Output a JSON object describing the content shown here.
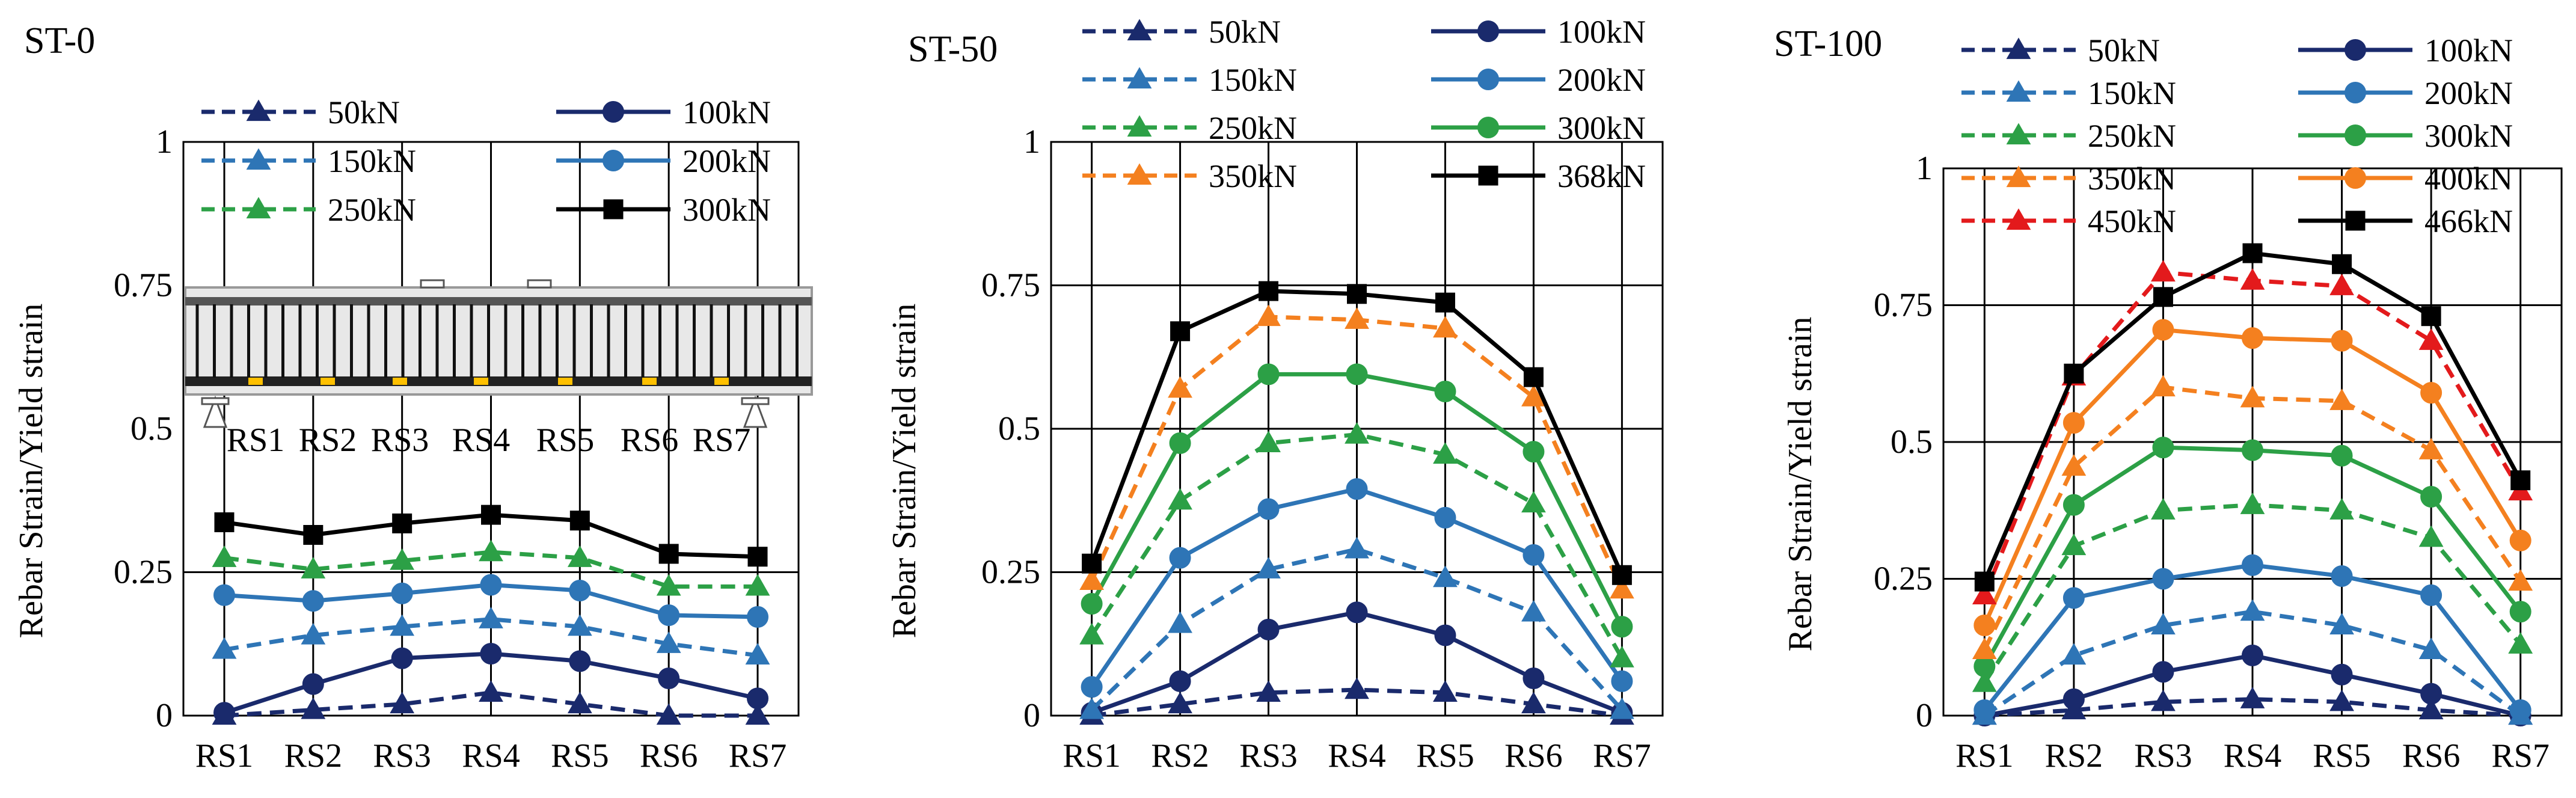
{
  "figure": {
    "panel_titles": [
      "ST-0",
      "ST-50",
      "ST-100"
    ],
    "specimen_inset": {
      "description_labels": [
        "RS1",
        "RS2",
        "RS3",
        "RS4",
        "RS5",
        "RS6",
        "RS7"
      ]
    }
  },
  "chart_data": [
    {
      "type": "line",
      "title": "ST-0",
      "xlabel": "",
      "ylabel": "Rebar Strain/Yield strain",
      "ylim": [
        0,
        1
      ],
      "yticks": [
        "0",
        "0.25",
        "0.5",
        "0.75",
        "1"
      ],
      "grid": "horizontal at 0.25 only, vertical at each category",
      "categories": [
        "RS1",
        "RS2",
        "RS3",
        "RS4",
        "RS5",
        "RS6",
        "RS7"
      ],
      "series": [
        {
          "name": "50kN",
          "color": "#1a2a6c",
          "dash": true,
          "marker": "triangle",
          "values": [
            0.0,
            0.01,
            0.02,
            0.04,
            0.02,
            0.0,
            0.0
          ]
        },
        {
          "name": "100kN",
          "color": "#1a2a6c",
          "dash": false,
          "marker": "circle",
          "values": [
            0.005,
            0.055,
            0.1,
            0.108,
            0.095,
            0.065,
            0.03
          ]
        },
        {
          "name": "150kN",
          "color": "#2e75b6",
          "dash": true,
          "marker": "triangle",
          "values": [
            0.115,
            0.14,
            0.155,
            0.168,
            0.155,
            0.125,
            0.105
          ]
        },
        {
          "name": "200kN",
          "color": "#2e75b6",
          "dash": false,
          "marker": "circle",
          "values": [
            0.21,
            0.2,
            0.213,
            0.228,
            0.218,
            0.175,
            0.172
          ]
        },
        {
          "name": "250kN",
          "color": "#2ca046",
          "dash": true,
          "marker": "triangle",
          "values": [
            0.275,
            0.255,
            0.27,
            0.285,
            0.275,
            0.225,
            0.225
          ]
        },
        {
          "name": "300kN",
          "color": "#000000",
          "dash": false,
          "marker": "square",
          "values": [
            0.337,
            0.315,
            0.335,
            0.35,
            0.34,
            0.282,
            0.277
          ]
        }
      ]
    },
    {
      "type": "line",
      "title": "ST-50",
      "xlabel": "",
      "ylabel": "Rebar Strain/Yield strain",
      "ylim": [
        0,
        1
      ],
      "yticks": [
        "0",
        "0.25",
        "0.5",
        "0.75",
        "1"
      ],
      "grid": "horizontal at 0.25/0.5/0.75, vertical at each category",
      "categories": [
        "RS1",
        "RS2",
        "RS3",
        "RS4",
        "RS5",
        "RS6",
        "RS7"
      ],
      "series": [
        {
          "name": "50kN",
          "color": "#1a2a6c",
          "dash": true,
          "marker": "triangle",
          "values": [
            0.0,
            0.02,
            0.04,
            0.045,
            0.04,
            0.02,
            0.0
          ]
        },
        {
          "name": "100kN",
          "color": "#1a2a6c",
          "dash": false,
          "marker": "circle",
          "values": [
            0.005,
            0.06,
            0.15,
            0.18,
            0.14,
            0.065,
            0.005
          ]
        },
        {
          "name": "150kN",
          "color": "#2e75b6",
          "dash": true,
          "marker": "triangle",
          "values": [
            0.01,
            0.16,
            0.255,
            0.29,
            0.24,
            0.18,
            0.01
          ]
        },
        {
          "name": "200kN",
          "color": "#2e75b6",
          "dash": false,
          "marker": "circle",
          "values": [
            0.05,
            0.275,
            0.36,
            0.395,
            0.345,
            0.28,
            0.06
          ]
        },
        {
          "name": "250kN",
          "color": "#2ca046",
          "dash": true,
          "marker": "triangle",
          "values": [
            0.14,
            0.375,
            0.475,
            0.49,
            0.455,
            0.37,
            0.1
          ]
        },
        {
          "name": "300kN",
          "color": "#2ca046",
          "dash": false,
          "marker": "circle",
          "values": [
            0.195,
            0.475,
            0.595,
            0.595,
            0.565,
            0.46,
            0.155
          ]
        },
        {
          "name": "350kN",
          "color": "#f4801f",
          "dash": true,
          "marker": "triangle",
          "values": [
            0.235,
            0.57,
            0.695,
            0.69,
            0.675,
            0.555,
            0.22
          ]
        },
        {
          "name": "368kN",
          "color": "#000000",
          "dash": false,
          "marker": "square",
          "values": [
            0.265,
            0.67,
            0.74,
            0.735,
            0.72,
            0.59,
            0.245
          ]
        }
      ]
    },
    {
      "type": "line",
      "title": "ST-100",
      "xlabel": "",
      "ylabel": "Rebar Strain/Yield strain",
      "ylim": [
        0,
        1
      ],
      "yticks": [
        "0",
        "0.25",
        "0.5",
        "0.75",
        "1"
      ],
      "grid": "horizontal at 0.25/0.5/0.75, vertical at each category",
      "categories": [
        "RS1",
        "RS2",
        "RS3",
        "RS4",
        "RS5",
        "RS6",
        "RS7"
      ],
      "series": [
        {
          "name": "50kN",
          "color": "#1a2a6c",
          "dash": true,
          "marker": "triangle",
          "values": [
            0.0,
            0.01,
            0.025,
            0.03,
            0.025,
            0.01,
            0.0
          ]
        },
        {
          "name": "100kN",
          "color": "#1a2a6c",
          "dash": false,
          "marker": "circle",
          "values": [
            0.0,
            0.03,
            0.08,
            0.11,
            0.075,
            0.04,
            0.0
          ]
        },
        {
          "name": "150kN",
          "color": "#2e75b6",
          "dash": true,
          "marker": "triangle",
          "values": [
            0.0,
            0.11,
            0.165,
            0.19,
            0.165,
            0.12,
            0.0
          ]
        },
        {
          "name": "200kN",
          "color": "#2e75b6",
          "dash": false,
          "marker": "circle",
          "values": [
            0.01,
            0.215,
            0.25,
            0.275,
            0.255,
            0.22,
            0.01
          ]
        },
        {
          "name": "250kN",
          "color": "#2ca046",
          "dash": true,
          "marker": "triangle",
          "values": [
            0.06,
            0.31,
            0.375,
            0.385,
            0.375,
            0.325,
            0.13
          ]
        },
        {
          "name": "300kN",
          "color": "#2ca046",
          "dash": false,
          "marker": "circle",
          "values": [
            0.09,
            0.385,
            0.49,
            0.485,
            0.475,
            0.4,
            0.19
          ]
        },
        {
          "name": "350kN",
          "color": "#f4801f",
          "dash": true,
          "marker": "triangle",
          "values": [
            0.12,
            0.455,
            0.6,
            0.58,
            0.575,
            0.485,
            0.245
          ]
        },
        {
          "name": "400kN",
          "color": "#f4801f",
          "dash": false,
          "marker": "circle",
          "values": [
            0.165,
            0.535,
            0.705,
            0.69,
            0.685,
            0.59,
            0.32
          ]
        },
        {
          "name": "450kN",
          "color": "#e31a1c",
          "dash": true,
          "marker": "triangle",
          "values": [
            0.22,
            0.62,
            0.81,
            0.795,
            0.785,
            0.685,
            0.41
          ]
        },
        {
          "name": "466kN",
          "color": "#000000",
          "dash": false,
          "marker": "square",
          "values": [
            0.245,
            0.625,
            0.765,
            0.845,
            0.825,
            0.73,
            0.43
          ]
        }
      ]
    }
  ]
}
